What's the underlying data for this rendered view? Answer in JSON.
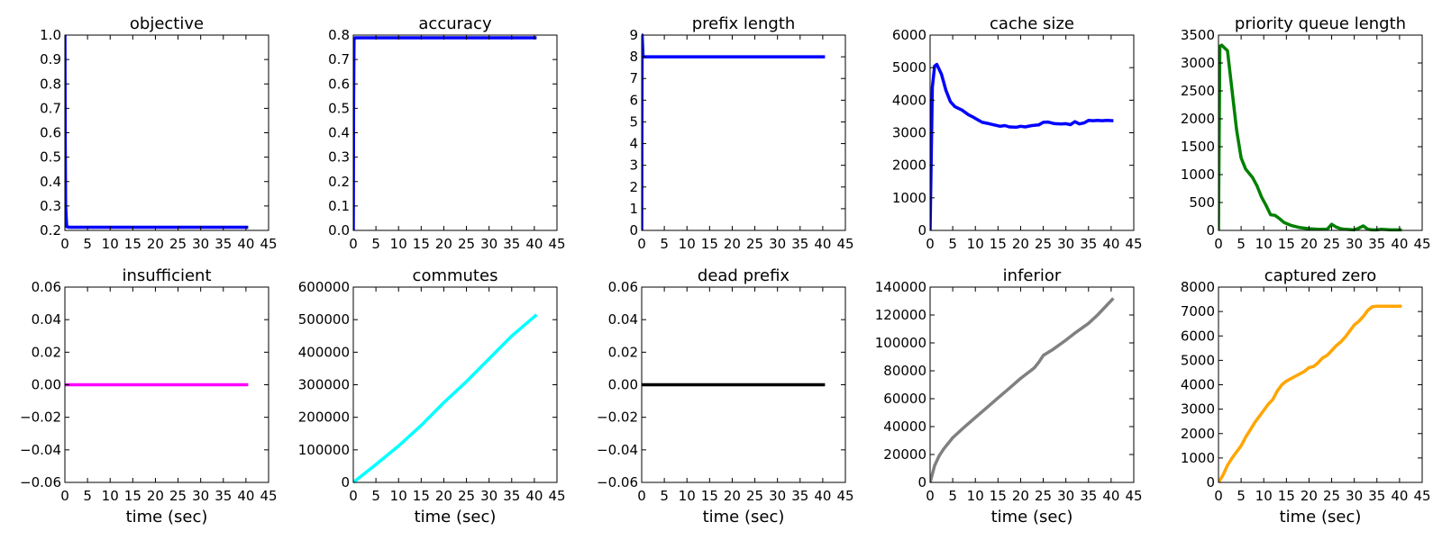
{
  "chart_data": [
    {
      "type": "line",
      "title": "objective",
      "xlabel": "",
      "xlim": [
        0,
        45
      ],
      "ylim": [
        0.2,
        1.0
      ],
      "xticks": [
        "0",
        "5",
        "10",
        "15",
        "20",
        "25",
        "30",
        "35",
        "40",
        "45"
      ],
      "yticks": [
        "0.2",
        "0.3",
        "0.4",
        "0.5",
        "0.6",
        "0.7",
        "0.8",
        "0.9",
        "1.0"
      ],
      "color": "#0000ff",
      "x": [
        0,
        0.05,
        0.15,
        0.4,
        1,
        5,
        10,
        15,
        20,
        25,
        30,
        35,
        40.5
      ],
      "y": [
        1.0,
        0.6,
        0.3,
        0.215,
        0.213,
        0.213,
        0.213,
        0.213,
        0.213,
        0.213,
        0.213,
        0.213,
        0.213
      ]
    },
    {
      "type": "line",
      "title": "accuracy",
      "xlabel": "",
      "xlim": [
        0,
        45
      ],
      "ylim": [
        0.0,
        0.8
      ],
      "xticks": [
        "0",
        "5",
        "10",
        "15",
        "20",
        "25",
        "30",
        "35",
        "40",
        "45"
      ],
      "yticks": [
        "0.0",
        "0.1",
        "0.2",
        "0.3",
        "0.4",
        "0.5",
        "0.6",
        "0.7",
        "0.8"
      ],
      "color": "#0000ff",
      "x": [
        0,
        0.05,
        0.15,
        0.4,
        1,
        5,
        10,
        15,
        20,
        25,
        30,
        35,
        40.5
      ],
      "y": [
        0.0,
        0.5,
        0.78,
        0.789,
        0.789,
        0.789,
        0.789,
        0.789,
        0.789,
        0.789,
        0.789,
        0.789,
        0.789
      ]
    },
    {
      "type": "line",
      "title": "prefix length",
      "xlabel": "",
      "xlim": [
        0,
        45
      ],
      "ylim": [
        0,
        9
      ],
      "xticks": [
        "0",
        "5",
        "10",
        "15",
        "20",
        "25",
        "30",
        "35",
        "40",
        "45"
      ],
      "yticks": [
        "0",
        "1",
        "2",
        "3",
        "4",
        "5",
        "6",
        "7",
        "8",
        "9"
      ],
      "color": "#0000ff",
      "x": [
        0,
        0.1,
        0.3,
        0.6,
        1,
        5,
        10,
        15,
        20,
        25,
        30,
        35,
        40.5
      ],
      "y": [
        0,
        9,
        8,
        8,
        8,
        8,
        8,
        8,
        8,
        8,
        8,
        8,
        8
      ]
    },
    {
      "type": "line",
      "title": "cache size",
      "xlabel": "",
      "xlim": [
        0,
        45
      ],
      "ylim": [
        0,
        6000
      ],
      "xticks": [
        "0",
        "5",
        "10",
        "15",
        "20",
        "25",
        "30",
        "35",
        "40",
        "45"
      ],
      "yticks": [
        "0",
        "1000",
        "2000",
        "3000",
        "4000",
        "5000",
        "6000"
      ],
      "color": "#0000ff",
      "x": [
        0,
        0.5,
        1,
        1.5,
        2.5,
        3.5,
        4.5,
        5.5,
        7,
        8.5,
        9.5,
        10.5,
        11.5,
        13,
        14.5,
        15.5,
        16.5,
        17.5,
        19,
        20,
        21,
        22.5,
        24,
        25,
        26,
        27.5,
        29,
        30,
        31,
        32,
        33,
        34,
        35,
        36,
        37,
        38,
        39,
        40.5
      ],
      "y": [
        0,
        4400,
        5050,
        5100,
        4800,
        4300,
        3950,
        3800,
        3700,
        3550,
        3480,
        3400,
        3320,
        3280,
        3230,
        3200,
        3220,
        3180,
        3170,
        3200,
        3180,
        3220,
        3240,
        3320,
        3330,
        3280,
        3270,
        3280,
        3250,
        3340,
        3270,
        3300,
        3380,
        3370,
        3380,
        3370,
        3380,
        3370
      ]
    },
    {
      "type": "line",
      "title": "priority queue length",
      "xlabel": "",
      "xlim": [
        0,
        45
      ],
      "ylim": [
        0,
        3500
      ],
      "xticks": [
        "0",
        "5",
        "10",
        "15",
        "20",
        "25",
        "30",
        "35",
        "40",
        "45"
      ],
      "yticks": [
        "0",
        "500",
        "1000",
        "1500",
        "2000",
        "2500",
        "3000",
        "3500"
      ],
      "color": "#008000",
      "x": [
        0,
        0.3,
        0.7,
        2,
        3,
        4,
        5,
        6,
        7.5,
        8.5,
        9.5,
        10.5,
        11.5,
        12.5,
        13.5,
        14.5,
        16,
        18,
        20,
        22,
        24,
        25,
        26,
        27,
        28,
        30,
        31,
        32,
        33,
        34,
        35,
        36,
        38,
        40.5
      ],
      "y": [
        0,
        3300,
        3320,
        3220,
        2500,
        1800,
        1300,
        1100,
        950,
        800,
        600,
        450,
        280,
        270,
        210,
        140,
        90,
        50,
        30,
        20,
        20,
        110,
        60,
        30,
        20,
        10,
        40,
        80,
        20,
        10,
        10,
        20,
        10,
        10
      ]
    },
    {
      "type": "line",
      "title": "insufficient",
      "xlabel": "time (sec)",
      "xlim": [
        0,
        45
      ],
      "ylim": [
        -0.06,
        0.06
      ],
      "xticks": [
        "0",
        "5",
        "10",
        "15",
        "20",
        "25",
        "30",
        "35",
        "40",
        "45"
      ],
      "yticks": [
        "−0.06",
        "−0.04",
        "−0.02",
        "0.00",
        "0.02",
        "0.04",
        "0.06"
      ],
      "color": "#ff00ff",
      "x": [
        0,
        40.5
      ],
      "y": [
        0,
        0
      ]
    },
    {
      "type": "line",
      "title": "commutes",
      "xlabel": "time (sec)",
      "xlim": [
        0,
        45
      ],
      "ylim": [
        0,
        600000
      ],
      "xticks": [
        "0",
        "5",
        "10",
        "15",
        "20",
        "25",
        "30",
        "35",
        "40",
        "45"
      ],
      "yticks": [
        "0",
        "100000",
        "200000",
        "300000",
        "400000",
        "500000",
        "600000"
      ],
      "color": "#00ffff",
      "x": [
        0,
        5,
        10,
        15,
        20,
        25,
        30,
        35,
        40.5
      ],
      "y": [
        0,
        55000,
        112000,
        175000,
        245000,
        310000,
        380000,
        450000,
        515000
      ]
    },
    {
      "type": "line",
      "title": "dead prefix",
      "xlabel": "time (sec)",
      "xlim": [
        0,
        45
      ],
      "ylim": [
        -0.06,
        0.06
      ],
      "xticks": [
        "0",
        "5",
        "10",
        "15",
        "20",
        "25",
        "30",
        "35",
        "40",
        "45"
      ],
      "yticks": [
        "−0.06",
        "−0.04",
        "−0.02",
        "0.00",
        "0.02",
        "0.04",
        "0.06"
      ],
      "color": "#000000",
      "x": [
        0,
        40.5
      ],
      "y": [
        0,
        0
      ]
    },
    {
      "type": "line",
      "title": "inferior",
      "xlabel": "time (sec)",
      "xlim": [
        0,
        45
      ],
      "ylim": [
        0,
        140000
      ],
      "xticks": [
        "0",
        "5",
        "10",
        "15",
        "20",
        "25",
        "30",
        "35",
        "40",
        "45"
      ],
      "yticks": [
        "0",
        "20000",
        "40000",
        "60000",
        "80000",
        "100000",
        "120000",
        "140000"
      ],
      "color": "#808080",
      "x": [
        0,
        1,
        2,
        3,
        5,
        7.5,
        10,
        12.5,
        15,
        17.5,
        20,
        23,
        24,
        25,
        27,
        30,
        32,
        35,
        37,
        40.5
      ],
      "y": [
        0,
        12000,
        19000,
        24000,
        32000,
        39500,
        46500,
        53500,
        60500,
        67500,
        74500,
        82000,
        86000,
        91000,
        95000,
        102000,
        107000,
        114000,
        120000,
        132000
      ]
    },
    {
      "type": "line",
      "title": "captured zero",
      "xlabel": "time (sec)",
      "xlim": [
        0,
        45
      ],
      "ylim": [
        0,
        8000
      ],
      "xticks": [
        "0",
        "5",
        "10",
        "15",
        "20",
        "25",
        "30",
        "35",
        "40",
        "45"
      ],
      "yticks": [
        "0",
        "1000",
        "2000",
        "3000",
        "4000",
        "5000",
        "6000",
        "7000",
        "8000"
      ],
      "color": "#ffa500",
      "x": [
        0,
        1,
        2,
        3,
        4,
        5,
        6,
        7,
        8,
        9,
        10,
        11,
        12,
        13,
        14,
        15,
        16,
        17,
        18,
        19,
        20,
        21,
        22,
        23,
        24,
        25,
        26,
        27,
        28,
        29,
        30,
        31,
        32,
        33,
        34,
        35,
        36,
        38,
        40.5
      ],
      "y": [
        0,
        300,
        700,
        1000,
        1250,
        1500,
        1850,
        2150,
        2450,
        2700,
        2950,
        3200,
        3400,
        3750,
        4000,
        4150,
        4250,
        4350,
        4450,
        4550,
        4700,
        4750,
        4900,
        5100,
        5200,
        5400,
        5600,
        5750,
        5950,
        6200,
        6450,
        6600,
        6800,
        7050,
        7200,
        7220,
        7220,
        7220,
        7220
      ]
    }
  ]
}
